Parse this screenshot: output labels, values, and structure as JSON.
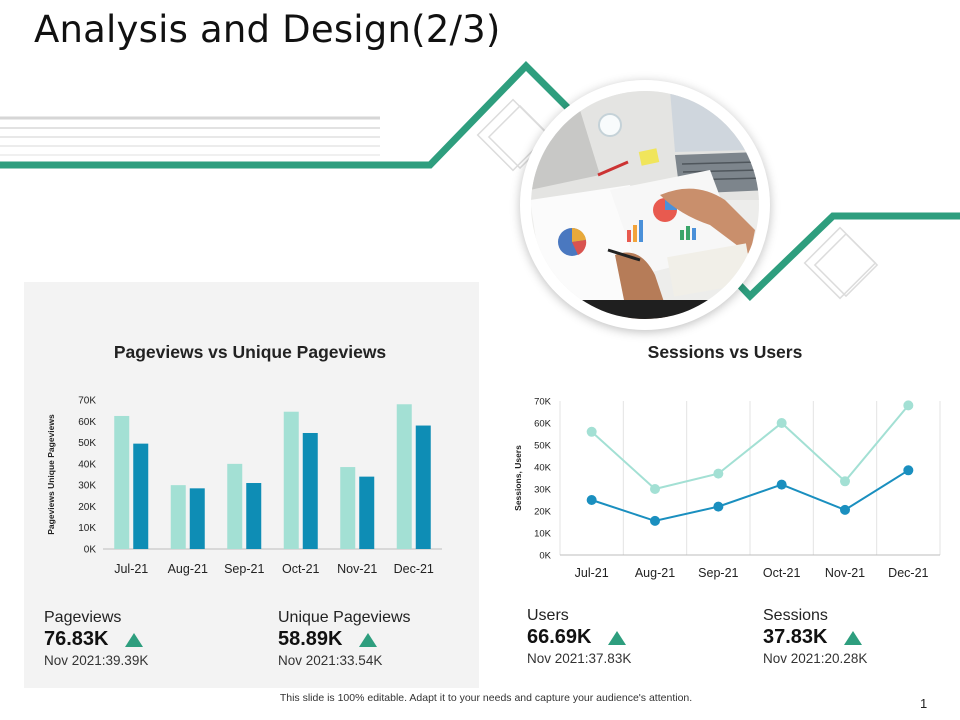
{
  "slide": {
    "title": "Analysis and Design(2/3)",
    "footer_note": "This slide is 100% editable. Adapt it to your needs and capture your audience's attention.",
    "page_number": "1",
    "colors": {
      "accent_green": "#2e9e7e",
      "bar_light": "#a3e0d4",
      "bar_dark": "#0e8db5",
      "line_light": "#a3e0d4",
      "line_dark": "#1a8fbf",
      "panel_bg": "#f3f3f3"
    }
  },
  "photo": {
    "icon": "laptop-charts-photo"
  },
  "chart_data": [
    {
      "type": "bar",
      "title": "Pageviews vs Unique Pageviews",
      "ylabel": "Pageviews Unique Pageviews",
      "categories": [
        "Jul-21",
        "Aug-21",
        "Sep-21",
        "Oct-21",
        "Nov-21",
        "Dec-21"
      ],
      "y_ticks": [
        "0K",
        "10K",
        "20K",
        "30K",
        "40K",
        "50K",
        "60K",
        "70K"
      ],
      "ylim": [
        0,
        70000
      ],
      "series": [
        {
          "values": [
            62500,
            30000,
            40000,
            64500,
            38500,
            68000
          ],
          "color": "#a3e0d4"
        },
        {
          "values": [
            49500,
            28500,
            31000,
            54500,
            34000,
            58000
          ],
          "color": "#0e8db5"
        }
      ],
      "grid": false
    },
    {
      "type": "line",
      "title": "Sessions vs Users",
      "ylabel": "Sessions, Users",
      "categories": [
        "Jul-21",
        "Aug-21",
        "Sep-21",
        "Oct-21",
        "Nov-21",
        "Dec-21"
      ],
      "y_ticks": [
        "0K",
        "10K",
        "20K",
        "30K",
        "40K",
        "50K",
        "60K",
        "70K"
      ],
      "ylim": [
        0,
        70000
      ],
      "series": [
        {
          "values": [
            56000,
            30000,
            37000,
            60000,
            33500,
            68000
          ],
          "color": "#a3e0d4"
        },
        {
          "values": [
            25000,
            15500,
            22000,
            32000,
            20500,
            38500
          ],
          "color": "#1a8fbf"
        }
      ],
      "grid": "vertical"
    }
  ],
  "kpis": {
    "pageviews": {
      "label": "Pageviews",
      "value": "76.83K",
      "sub": "Nov 2021:39.39K",
      "trend": "up"
    },
    "unique_pageviews": {
      "label": "Unique Pageviews",
      "value": "58.89K",
      "sub": "Nov 2021:33.54K",
      "trend": "up"
    },
    "users": {
      "label": "Users",
      "value": "66.69K",
      "sub": "Nov 2021:37.83K",
      "trend": "up"
    },
    "sessions": {
      "label": "Sessions",
      "value": "37.83K",
      "sub": "Nov 2021:20.28K",
      "trend": "up"
    }
  }
}
